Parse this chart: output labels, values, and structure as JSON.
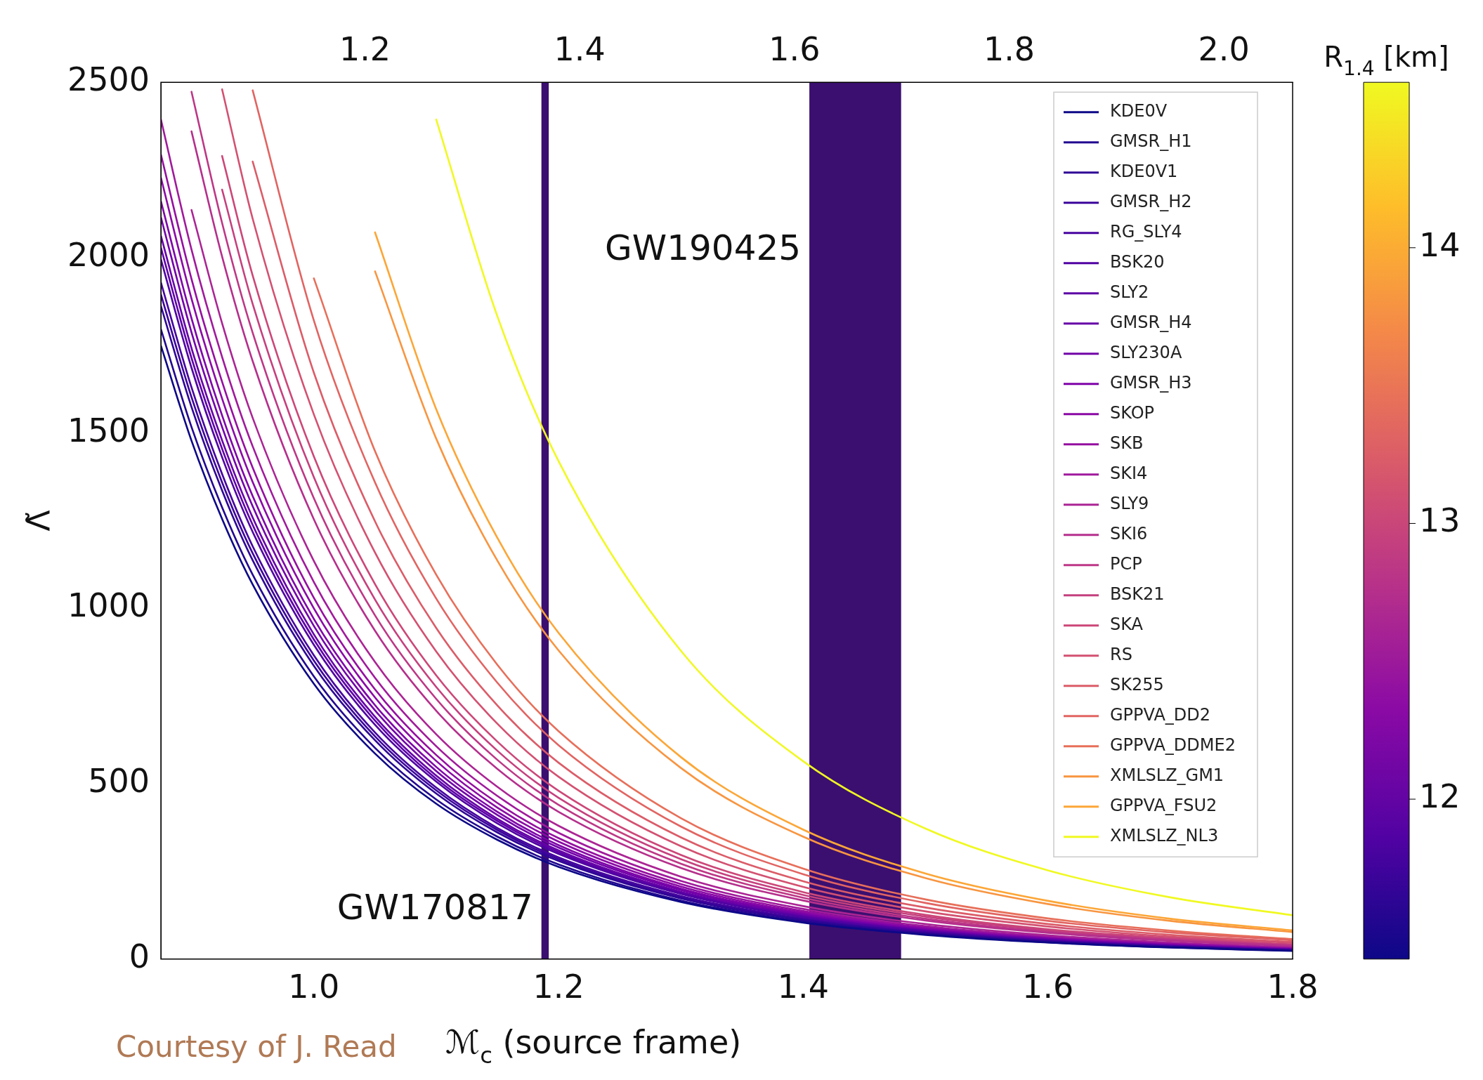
{
  "chart_data": {
    "type": "line",
    "xlabel": "ℳ$_{c}$ (source frame)",
    "ylabel": "Λ̃",
    "clabel": "R$_{1.4}$ [km]",
    "annotations": [
      "Courtesy of J. Read"
    ],
    "x": [
      0.875,
      0.9,
      0.925,
      0.95,
      1.0,
      1.05,
      1.1,
      1.15,
      1.2,
      1.3,
      1.4,
      1.5,
      1.6,
      1.7,
      1.8
    ],
    "xlim": [
      0.875,
      1.8
    ],
    "xticks": [
      {
        "value": 1.0,
        "label": "1.0"
      },
      {
        "value": 1.2,
        "label": "1.2"
      },
      {
        "value": 1.4,
        "label": "1.4"
      },
      {
        "value": 1.6,
        "label": "1.6"
      },
      {
        "value": 1.8,
        "label": "1.8"
      }
    ],
    "x2lim": [
      1.01,
      2.064
    ],
    "x2ticks": [
      {
        "value": 1.2,
        "label": "1.2"
      },
      {
        "value": 1.4,
        "label": "1.4"
      },
      {
        "value": 1.6,
        "label": "1.6"
      },
      {
        "value": 1.8,
        "label": "1.8"
      },
      {
        "value": 2.0,
        "label": "2.0"
      }
    ],
    "ylim": [
      0,
      2500
    ],
    "yticks": [
      0,
      500,
      1000,
      1500,
      2000,
      2500
    ],
    "clim": [
      11.42,
      14.6
    ],
    "cticks": [
      12,
      13,
      14
    ],
    "legend": "top right",
    "marker": "none",
    "line_style": "solid",
    "bands": [
      {
        "axis": "x",
        "from": 1.186,
        "to": 1.192,
        "label": "GW170817",
        "color": "#3b0f70"
      },
      {
        "axis": "x",
        "from": 1.405,
        "to": 1.48,
        "label": "GW190425",
        "color": "#3b0f70"
      }
    ],
    "series": [
      {
        "name": "KDE0V",
        "color": "#0d0887",
        "values": [
          1749,
          1478,
          1255,
          1068,
          785,
          586,
          443,
          340,
          263,
          163,
          104,
          69,
          47,
          33,
          23
        ]
      },
      {
        "name": "GMSR_H1",
        "color": "#220690",
        "values": [
          1796,
          1517,
          1288,
          1096,
          806,
          602,
          455,
          349,
          270,
          167,
          107,
          71,
          48,
          33,
          24
        ]
      },
      {
        "name": "KDE0V1",
        "color": "#2f0596",
        "values": [
          1862,
          1574,
          1336,
          1137,
          836,
          624,
          472,
          361,
          280,
          173,
          111,
          73,
          50,
          35,
          25
        ]
      },
      {
        "name": "GMSR_H2",
        "color": "#3b049a",
        "values": [
          1895,
          1602,
          1359,
          1157,
          851,
          635,
          481,
          368,
          285,
          176,
          113,
          75,
          51,
          35,
          25
        ]
      },
      {
        "name": "RG_SLY4",
        "color": "#46039f",
        "values": [
          1929,
          1630,
          1383,
          1177,
          866,
          646,
          489,
          374,
          290,
          180,
          115,
          76,
          52,
          36,
          25
        ]
      },
      {
        "name": "BSK20",
        "color": "#5002a2",
        "values": [
          1995,
          1686,
          1431,
          1218,
          896,
          668,
          506,
          387,
          300,
          186,
          119,
          79,
          53,
          37,
          26
        ]
      },
      {
        "name": "SLY2",
        "color": "#5c01a6",
        "values": [
          2028,
          1714,
          1455,
          1238,
          911,
          680,
          514,
          394,
          305,
          189,
          121,
          80,
          54,
          38,
          27
        ]
      },
      {
        "name": "GMSR_H4",
        "color": "#6600a7",
        "values": [
          2062,
          1742,
          1479,
          1259,
          926,
          691,
          523,
          400,
          310,
          192,
          123,
          81,
          55,
          38,
          27
        ]
      },
      {
        "name": "SLY230A",
        "color": "#7201a8",
        "values": [
          2115,
          1787,
          1517,
          1291,
          950,
          709,
          536,
          411,
          318,
          197,
          126,
          83,
          57,
          39,
          28
        ]
      },
      {
        "name": "GMSR_H3",
        "color": "#7e03a8",
        "values": [
          2161,
          1827,
          1550,
          1320,
          970,
          724,
          548,
          420,
          325,
          201,
          129,
          85,
          58,
          40,
          29
        ]
      },
      {
        "name": "SKOP",
        "color": "#8a09a5",
        "values": [
          2228,
          1883,
          1598,
          1360,
          1000,
          746,
          565,
          432,
          335,
          207,
          133,
          88,
          60,
          42,
          29
        ]
      },
      {
        "name": "SKB",
        "color": "#950fa0",
        "values": [
          2294,
          1939,
          1646,
          1401,
          1030,
          769,
          582,
          445,
          345,
          214,
          137,
          90,
          61,
          43,
          30
        ]
      },
      {
        "name": "SKI4",
        "color": "#a01a9c",
        "values": [
          2394,
          2023,
          1717,
          1462,
          1075,
          802,
          607,
          465,
          360,
          223,
          143,
          94,
          64,
          45,
          32
        ]
      },
      {
        "name": "SLY9",
        "color": "#ab2494",
        "values": [
          null,
          2136,
          1813,
          1543,
          1135,
          847,
          641,
          491,
          380,
          235,
          151,
          100,
          68,
          47,
          33
        ]
      },
      {
        "name": "SKI6",
        "color": "#b52f8c",
        "values": [
          null,
          2360,
          2003,
          1705,
          1254,
          936,
          708,
          542,
          420,
          260,
          167,
          110,
          75,
          52,
          37
        ]
      },
      {
        "name": "PCP",
        "color": "#bd3786",
        "values": [
          null,
          2473,
          2099,
          1786,
          1314,
          980,
          742,
          568,
          440,
          272,
          175,
          115,
          78,
          55,
          39
        ]
      },
      {
        "name": "BSK21",
        "color": "#c5407e",
        "values": [
          null,
          null,
          2194,
          1868,
          1374,
          1025,
          776,
          594,
          460,
          285,
          183,
          121,
          82,
          57,
          40
        ]
      },
      {
        "name": "SKA",
        "color": "#cc4778",
        "values": [
          null,
          null,
          2290,
          1949,
          1433,
          1069,
          809,
          620,
          480,
          297,
          191,
          126,
          85,
          60,
          42
        ]
      },
      {
        "name": "RS",
        "color": "#d35171",
        "values": [
          null,
          null,
          2480,
          2111,
          1553,
          1159,
          877,
          671,
          520,
          322,
          206,
          136,
          93,
          64,
          46
        ]
      },
      {
        "name": "SK255",
        "color": "#db5c68",
        "values": [
          null,
          null,
          null,
          2274,
          1672,
          1248,
          944,
          723,
          560,
          347,
          222,
          147,
          100,
          69,
          49
        ]
      },
      {
        "name": "GPPVA_DD2",
        "color": "#e16462",
        "values": [
          null,
          null,
          null,
          2477,
          1821,
          1359,
          1028,
          788,
          610,
          378,
          242,
          160,
          109,
          76,
          54
        ]
      },
      {
        "name": "GPPVA_DDME2",
        "color": "#e76f5a",
        "values": [
          null,
          null,
          null,
          null,
          1941,
          1448,
          1096,
          839,
          650,
          402,
          258,
          170,
          116,
          81,
          57
        ]
      },
      {
        "name": "XMLSLZ_GM1",
        "color": "#f89540",
        "values": [
          null,
          null,
          null,
          null,
          null,
          1961,
          1484,
          1136,
          880,
          545,
          349,
          231,
          157,
          109,
          77
        ]
      },
      {
        "name": "GPPVA_FSU2",
        "color": "#fca636",
        "values": [
          null,
          null,
          null,
          null,
          null,
          2072,
          1568,
          1201,
          930,
          576,
          369,
          244,
          166,
          115,
          82
        ]
      },
      {
        "name": "XMLSLZ_NL3",
        "color": "#f0f921",
        "values": [
          null,
          null,
          null,
          null,
          null,
          null,
          2394,
          1833,
          1420,
          879,
          564,
          372,
          253,
          176,
          125
        ]
      }
    ]
  }
}
